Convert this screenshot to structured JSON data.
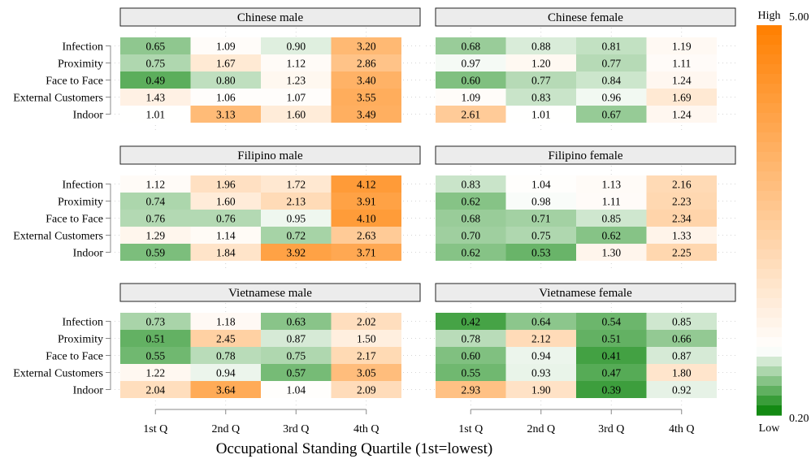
{
  "chart_data": {
    "type": "heatmap",
    "xlabel": "Occupational Standing Quartile (1st=lowest)",
    "categories": [
      "1st Q",
      "2nd Q",
      "3rd Q",
      "4th Q"
    ],
    "rows": [
      "Infection",
      "Proximity",
      "Face to Face",
      "External Customers",
      "Indoor"
    ],
    "colorbar": {
      "min": 0.2,
      "max": 5.0,
      "min_label": "0.20",
      "max_label": "5.00",
      "low_label": "Low",
      "high_label": "High",
      "low_color": "#008000",
      "mid_color": "#ffffff",
      "high_color": "#ff7f00",
      "midpoint": 1.0
    },
    "panels": [
      {
        "title": "Chinese male",
        "values": [
          [
            0.65,
            1.09,
            0.9,
            3.2
          ],
          [
            0.75,
            1.67,
            1.12,
            2.86
          ],
          [
            0.49,
            0.8,
            1.23,
            3.4
          ],
          [
            1.43,
            1.06,
            1.07,
            3.55
          ],
          [
            1.01,
            3.13,
            1.6,
            3.49
          ]
        ]
      },
      {
        "title": "Chinese female",
        "values": [
          [
            0.68,
            0.88,
            0.81,
            1.19
          ],
          [
            0.97,
            1.2,
            0.77,
            1.11
          ],
          [
            0.6,
            0.77,
            0.84,
            1.24
          ],
          [
            1.09,
            0.83,
            0.96,
            1.69
          ],
          [
            2.61,
            1.01,
            0.67,
            1.24
          ]
        ]
      },
      {
        "title": "Filipino male",
        "values": [
          [
            1.12,
            1.96,
            1.72,
            4.12
          ],
          [
            0.74,
            1.6,
            2.13,
            3.91
          ],
          [
            0.76,
            0.76,
            0.95,
            4.1
          ],
          [
            1.29,
            1.14,
            0.72,
            2.63
          ],
          [
            0.59,
            1.84,
            3.92,
            3.71
          ]
        ]
      },
      {
        "title": "Filipino female",
        "values": [
          [
            0.83,
            1.04,
            1.13,
            2.16
          ],
          [
            0.62,
            0.98,
            1.11,
            2.23
          ],
          [
            0.68,
            0.71,
            0.85,
            2.34
          ],
          [
            0.7,
            0.75,
            0.62,
            1.33
          ],
          [
            0.62,
            0.53,
            1.3,
            2.25
          ]
        ]
      },
      {
        "title": "Vietnamese male",
        "values": [
          [
            0.73,
            1.18,
            0.63,
            2.02
          ],
          [
            0.51,
            2.45,
            0.87,
            1.5
          ],
          [
            0.55,
            0.78,
            0.75,
            2.17
          ],
          [
            1.22,
            0.94,
            0.57,
            3.05
          ],
          [
            2.04,
            3.64,
            1.04,
            2.09
          ]
        ]
      },
      {
        "title": "Vietnamese female",
        "values": [
          [
            0.42,
            0.64,
            0.54,
            0.85
          ],
          [
            0.78,
            2.12,
            0.51,
            0.66
          ],
          [
            0.6,
            0.94,
            0.41,
            0.87
          ],
          [
            0.55,
            0.93,
            0.47,
            1.8
          ],
          [
            2.93,
            1.9,
            0.39,
            0.92
          ]
        ]
      }
    ]
  }
}
